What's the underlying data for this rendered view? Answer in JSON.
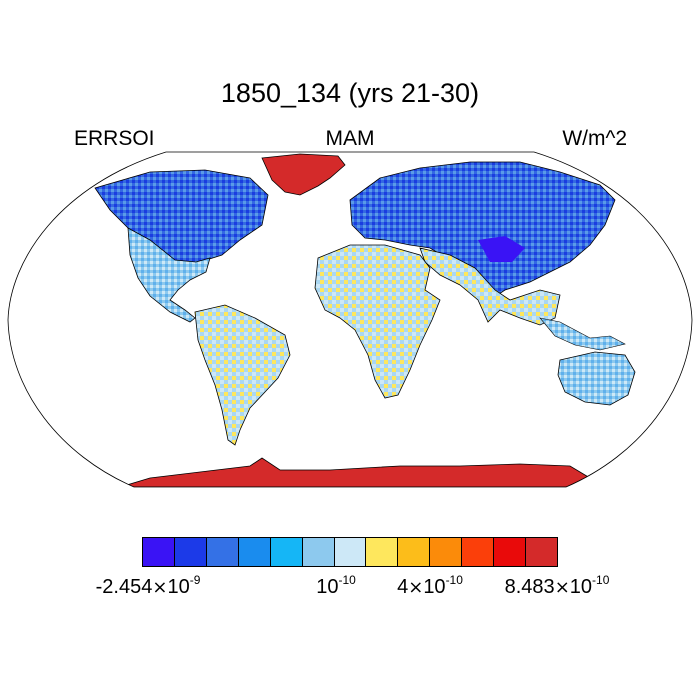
{
  "header": {
    "title": "1850_134 (yrs 21-30)",
    "left_label": "ERRSOI",
    "center_label": "MAM",
    "right_label": "W/m^2"
  },
  "colorbar": {
    "colors": [
      "#3a13f5",
      "#1c3ae8",
      "#3471e6",
      "#1a8cee",
      "#15b6f6",
      "#8dc9ee",
      "#cde8f7",
      "#fee75d",
      "#fcbd1a",
      "#fb8b0a",
      "#fb3f0a",
      "#e90a0a",
      "#d42a2a"
    ],
    "labels": [
      {
        "mantissa": "-2.454",
        "times": "×",
        "base": "10",
        "exp": "-9"
      },
      {
        "mantissa": "",
        "times": "",
        "base": "10",
        "exp": "-10"
      },
      {
        "mantissa": "4",
        "times": "×",
        "base": "10",
        "exp": "-10"
      },
      {
        "mantissa": "8.483",
        "times": "×",
        "base": "10",
        "exp": "-10"
      }
    ]
  },
  "map": {
    "projection": "robinson",
    "land_colors": {
      "high_latitude_north": "#2e57e2",
      "mid_latitude": "#8dc9ee",
      "tropics_mix": "#cde8f7",
      "yellow_patches": "#fee75d",
      "greenland": "#d42a2a",
      "antarctica": "#d42a2a",
      "tibet": "#3a13f5"
    }
  }
}
